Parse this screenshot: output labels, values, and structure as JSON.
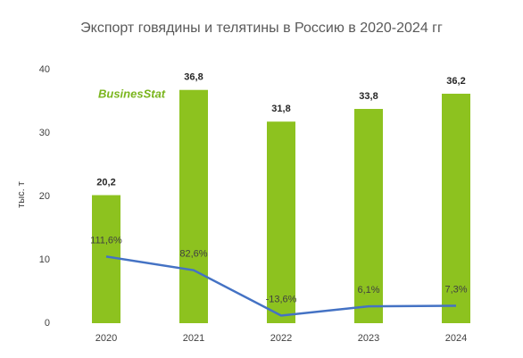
{
  "chart_data": {
    "type": "bar",
    "title": "Экспорт говядины и телятины в Россию в 2020-2024 гг",
    "y_label": "тыс. т",
    "logo": "BusinesStat",
    "categories": [
      "2020",
      "2021",
      "2022",
      "2023",
      "2024"
    ],
    "series": [
      {
        "type": "bar",
        "color": "#8dc21f",
        "values": [
          20.2,
          36.8,
          31.8,
          33.8,
          36.2
        ],
        "value_labels": [
          "20,2",
          "36,8",
          "31,8",
          "33,8",
          "36,2"
        ]
      },
      {
        "type": "line",
        "axis": "y2",
        "color": "#4472c4",
        "values": [
          111.6,
          82.6,
          -13.6,
          6.1,
          7.3
        ],
        "value_labels": [
          "111,6%",
          "82,6%",
          "-13,6%",
          "6,1%",
          "7,3%"
        ]
      }
    ],
    "ylim": [
      0,
      40
    ],
    "yticks": [
      0,
      10,
      20,
      30,
      40
    ],
    "y2lim": [
      -29.7,
      508
    ],
    "grid": false
  }
}
